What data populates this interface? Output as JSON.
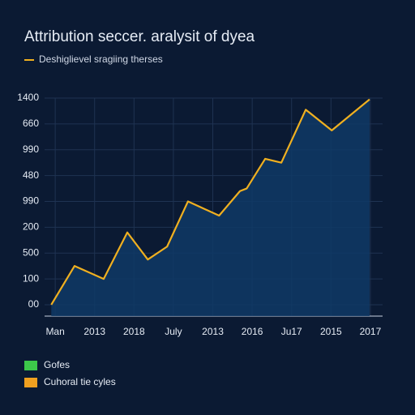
{
  "chart_data": {
    "type": "area",
    "title": "Attribution seccer. aralysit of dyea",
    "series": [
      {
        "name": "Deshiglievel sragiing therses",
        "color": "#f0b020",
        "x": [
          -0.1,
          0.49,
          1.23,
          1.83,
          2.35,
          2.84,
          3.37,
          4.16,
          4.69,
          4.86,
          5.33,
          5.74,
          6.36,
          7.02,
          7.98
        ],
        "values": [
          0,
          150,
          100,
          280,
          175,
          225,
          400,
          345,
          440,
          450,
          565,
          550,
          755,
          675,
          795
        ]
      }
    ],
    "xlim": [
      -0.27,
      8.31
    ],
    "xticks": [
      {
        "value": 0,
        "label": "Man"
      },
      {
        "value": 1,
        "label": "2013"
      },
      {
        "value": 2,
        "label": "2018"
      },
      {
        "value": 3,
        "label": "July"
      },
      {
        "value": 4,
        "label": "2013"
      },
      {
        "value": 5,
        "label": "2016"
      },
      {
        "value": 6,
        "label": "Ju17"
      },
      {
        "value": 7,
        "label": "2015"
      },
      {
        "value": 8,
        "label": "2017"
      }
    ],
    "ylim": [
      -44,
      800
    ],
    "yticks": [
      {
        "value": 0,
        "label": "00"
      },
      100,
      {
        "value": 200,
        "label": "500"
      },
      {
        "value": 300,
        "label": "200"
      },
      {
        "value": 400,
        "label": "990"
      },
      {
        "value": 500,
        "label": "480"
      },
      {
        "value": 600,
        "label": "990"
      },
      {
        "value": 700,
        "label": "660"
      },
      {
        "value": 800,
        "label": "1400"
      }
    ],
    "grid": true,
    "fill_color": "#0f3a66",
    "legend_items": [
      {
        "name": "Gofes",
        "color": "#3cc84a"
      },
      {
        "name": "Cuhoral tie cyles",
        "color": "#f0a020"
      }
    ]
  }
}
